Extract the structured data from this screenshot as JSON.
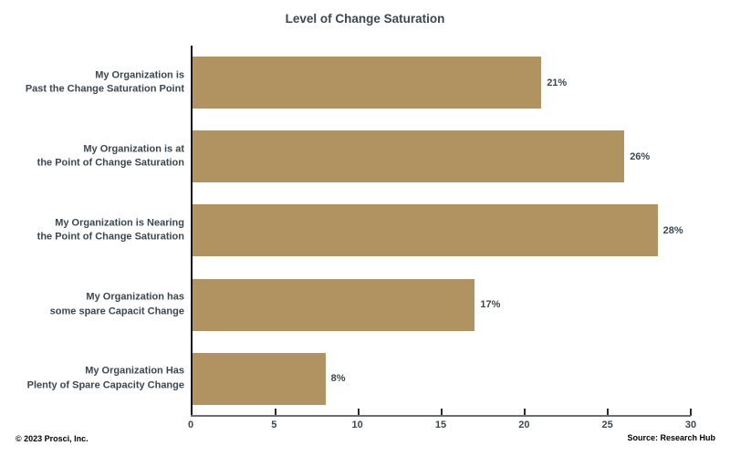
{
  "title": "Level of Change Saturation",
  "chart_data": {
    "type": "bar",
    "orientation": "horizontal",
    "title": "Level of Change Saturation",
    "categories": [
      "My Organization is\nPast the Change Saturation Point",
      "My Organization is at\nthe Point of Change Saturation",
      "My Organization is Nearing\nthe Point of Change Saturation",
      "My Organization has\nsome spare Capacit Change",
      "My Organization Has\nPlenty of Spare Capacity Change"
    ],
    "values": [
      21,
      26,
      28,
      17,
      8
    ],
    "value_labels": [
      "21%",
      "26%",
      "28%",
      "17%",
      "8%"
    ],
    "xlabel": "",
    "ylabel": "",
    "xlim": [
      0,
      30
    ],
    "x_ticks": [
      0,
      5,
      10,
      15,
      20,
      25,
      30
    ],
    "bar_color": "#B19361",
    "grid": false,
    "legend": false
  },
  "footer": {
    "left": "© 2023 Prosci, Inc.",
    "right": "Source: Research Hub"
  }
}
